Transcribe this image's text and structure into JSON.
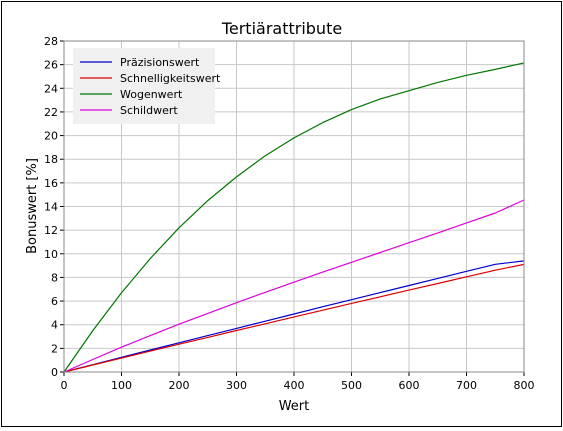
{
  "chart_data": {
    "type": "line",
    "title": "Tertiärattribute",
    "xlabel": "Wert",
    "ylabel": "Bonuswert [%]",
    "xlim": [
      0,
      800
    ],
    "ylim": [
      0,
      28
    ],
    "x_ticks": [
      0,
      100,
      200,
      300,
      400,
      500,
      600,
      700,
      800
    ],
    "y_ticks": [
      0,
      2,
      4,
      6,
      8,
      10,
      12,
      14,
      16,
      18,
      20,
      22,
      24,
      26,
      28
    ],
    "grid": true,
    "legend_position": "top-left",
    "x": [
      0,
      50,
      100,
      150,
      200,
      250,
      300,
      350,
      400,
      450,
      500,
      550,
      600,
      650,
      700,
      750,
      800
    ],
    "series": [
      {
        "name": "Präzisionswert",
        "color": "#0000cc",
        "values": [
          0,
          0.62,
          1.24,
          1.86,
          2.47,
          3.08,
          3.69,
          4.3,
          4.91,
          5.52,
          6.12,
          6.72,
          7.32,
          7.92,
          8.52,
          9.11,
          9.4
        ]
      },
      {
        "name": "Schnelligkeitswert",
        "color": "#dd0000",
        "values": [
          0,
          0.59,
          1.18,
          1.77,
          2.35,
          2.93,
          3.51,
          4.08,
          4.66,
          5.23,
          5.8,
          6.36,
          6.93,
          7.49,
          8.05,
          8.61,
          9.1
        ]
      },
      {
        "name": "Wogenwert",
        "color": "#007700",
        "values": [
          0,
          3.5,
          6.7,
          9.6,
          12.2,
          14.5,
          16.5,
          18.3,
          19.8,
          21.1,
          22.2,
          23.1,
          23.8,
          24.5,
          25.1,
          25.6,
          26.15
        ]
      },
      {
        "name": "Schildwert",
        "color": "#dd00dd",
        "values": [
          0,
          1.06,
          2.1,
          3.08,
          4.04,
          4.96,
          5.86,
          6.74,
          7.6,
          8.45,
          9.28,
          10.11,
          10.94,
          11.77,
          12.61,
          13.45,
          14.55
        ]
      }
    ]
  }
}
